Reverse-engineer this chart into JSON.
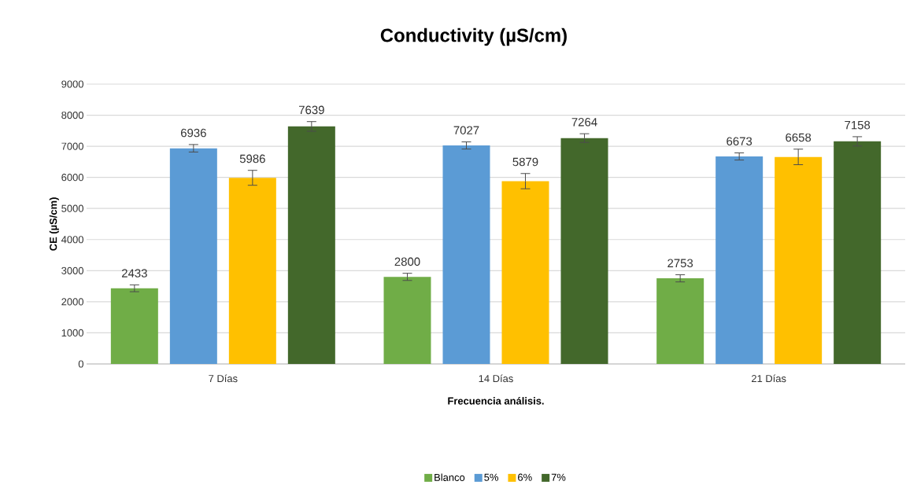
{
  "chart_data": {
    "type": "bar",
    "title": "Conductivity (µS/cm)",
    "xlabel": "Frecuencia análisis.",
    "ylabel": "CE (µS/cm)",
    "categories": [
      "7 Días",
      "14 Días",
      "21 Días"
    ],
    "series": [
      {
        "name": "Blanco",
        "color": "#70ad47",
        "values": [
          2433,
          2800,
          2753
        ],
        "errors": [
          110,
          115,
          115
        ]
      },
      {
        "name": "5%",
        "color": "#5b9bd5",
        "values": [
          6936,
          7027,
          6673
        ],
        "errors": [
          120,
          115,
          115
        ]
      },
      {
        "name": "6%",
        "color": "#ffc000",
        "values": [
          5986,
          5879,
          6658
        ],
        "errors": [
          240,
          245,
          250
        ]
      },
      {
        "name": "7%",
        "color": "#43682b",
        "values": [
          7639,
          7264,
          7158
        ],
        "errors": [
          155,
          140,
          150
        ]
      }
    ],
    "ylim": [
      0,
      9000
    ],
    "yticks": [
      0,
      1000,
      2000,
      3000,
      4000,
      5000,
      6000,
      7000,
      8000,
      9000
    ],
    "grid": "y",
    "legend": "bottom",
    "data_labels": true
  }
}
